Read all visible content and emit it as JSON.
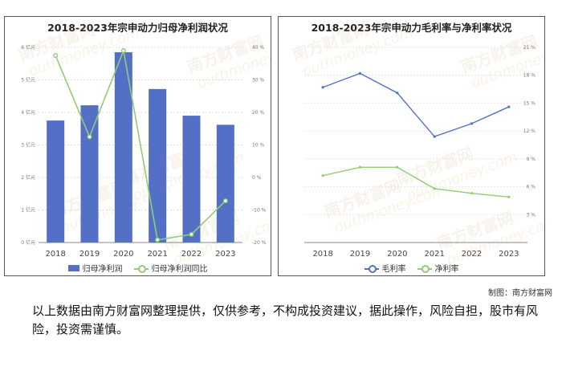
{
  "credit": "制图：南方财富网",
  "disclaimer": "以上数据由南方财富网整理提供，仅供参考，不构成投资建议，据此操作，风险自担，股市有风险，投资需谨慎。",
  "watermark": {
    "cn": "南方财富网",
    "en": "outhmoney.com"
  },
  "chart_data": [
    {
      "type": "bar",
      "title": "2018-2023年宗申动力归母净利润状况",
      "categories": [
        "2018",
        "2019",
        "2020",
        "2021",
        "2022",
        "2023"
      ],
      "series": [
        {
          "name": "归母净利润",
          "type": "bar",
          "axis": "left",
          "values": [
            3.75,
            4.22,
            5.85,
            4.72,
            3.9,
            3.62
          ],
          "color": "#5470c6"
        },
        {
          "name": "归母净利润同比",
          "type": "line",
          "axis": "right",
          "values": [
            37.5,
            12.5,
            39.0,
            -19.2,
            -17.5,
            -7.2
          ],
          "color": "#91cc75"
        }
      ],
      "yleft": {
        "ticks": [
          "0 亿元",
          "1 亿元",
          "2 亿元",
          "3 亿元",
          "4 亿元",
          "5 亿元",
          "6 亿元"
        ],
        "lim": [
          0,
          6
        ]
      },
      "yright": {
        "ticks": [
          "-20 %",
          "-10 %",
          "0 %",
          "10 %",
          "20 %",
          "30 %",
          "40 %"
        ],
        "lim": [
          -20,
          40
        ]
      },
      "legend": [
        "归母净利润",
        "归母净利润同比"
      ]
    },
    {
      "type": "line",
      "title": "2018-2023年宗申动力毛利率与净利率状况",
      "categories": [
        "2018",
        "2019",
        "2020",
        "2021",
        "2022",
        "2023"
      ],
      "series": [
        {
          "name": "毛利率",
          "values": [
            16.7,
            18.2,
            16.1,
            11.4,
            12.8,
            14.6
          ],
          "color": "#5470c6"
        },
        {
          "name": "净利率",
          "values": [
            7.2,
            8.1,
            8.1,
            5.8,
            5.3,
            4.9
          ],
          "color": "#91cc75"
        }
      ],
      "y": {
        "ticks": [
          "3 %",
          "6 %",
          "9 %",
          "12 %",
          "15 %",
          "18 %",
          "21 %"
        ],
        "lim": [
          0,
          21
        ]
      },
      "legend": [
        "毛利率",
        "净利率"
      ]
    }
  ]
}
